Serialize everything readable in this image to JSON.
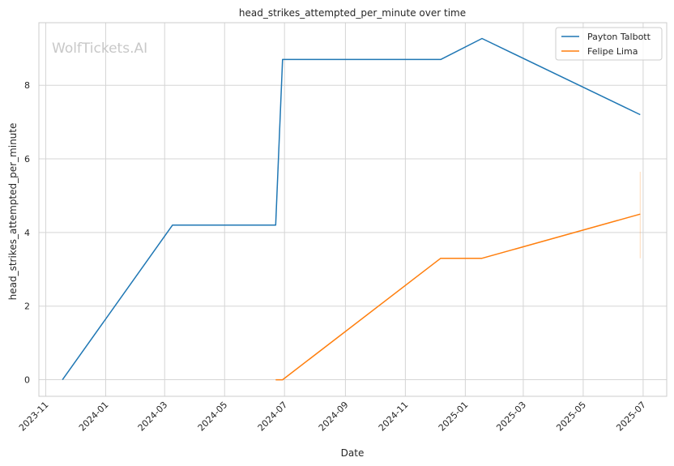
{
  "chart_data": {
    "type": "line",
    "title": "head_strikes_attempted_per_minute over time",
    "xlabel": "Date",
    "ylabel": "head_strikes_attempted_per_minute",
    "watermark": "WolfTickets.AI",
    "x_ticks": [
      "2023-11",
      "2024-01",
      "2024-03",
      "2024-05",
      "2024-07",
      "2024-09",
      "2024-11",
      "2025-01",
      "2025-03",
      "2025-05",
      "2025-07"
    ],
    "y_ticks": [
      0,
      2,
      4,
      6,
      8
    ],
    "xlim": [
      "2023-10-25",
      "2025-07-25"
    ],
    "ylim": [
      -0.45,
      9.7
    ],
    "grid": true,
    "legend_position": "top-right",
    "series": [
      {
        "name": "Payton Talbott",
        "color": "#1f77b4",
        "points": [
          {
            "x": "2023-11-18",
            "y": 0
          },
          {
            "x": "2024-03-09",
            "y": 4.2
          },
          {
            "x": "2024-06-22",
            "y": 4.2
          },
          {
            "x": "2024-06-29",
            "y": 8.7
          },
          {
            "x": "2024-12-07",
            "y": 8.7
          },
          {
            "x": "2025-01-18",
            "y": 9.27
          },
          {
            "x": "2025-06-28",
            "y": 7.2
          }
        ]
      },
      {
        "name": "Felipe Lima",
        "color": "#ff7f0e",
        "points": [
          {
            "x": "2024-06-22",
            "y": 0
          },
          {
            "x": "2024-06-29",
            "y": 0
          },
          {
            "x": "2024-12-07",
            "y": 3.3
          },
          {
            "x": "2025-01-18",
            "y": 3.3
          },
          {
            "x": "2025-06-28",
            "y": 4.5
          }
        ],
        "error_bar": {
          "x": "2025-06-28",
          "low": 3.3,
          "high": 5.65
        }
      }
    ]
  }
}
